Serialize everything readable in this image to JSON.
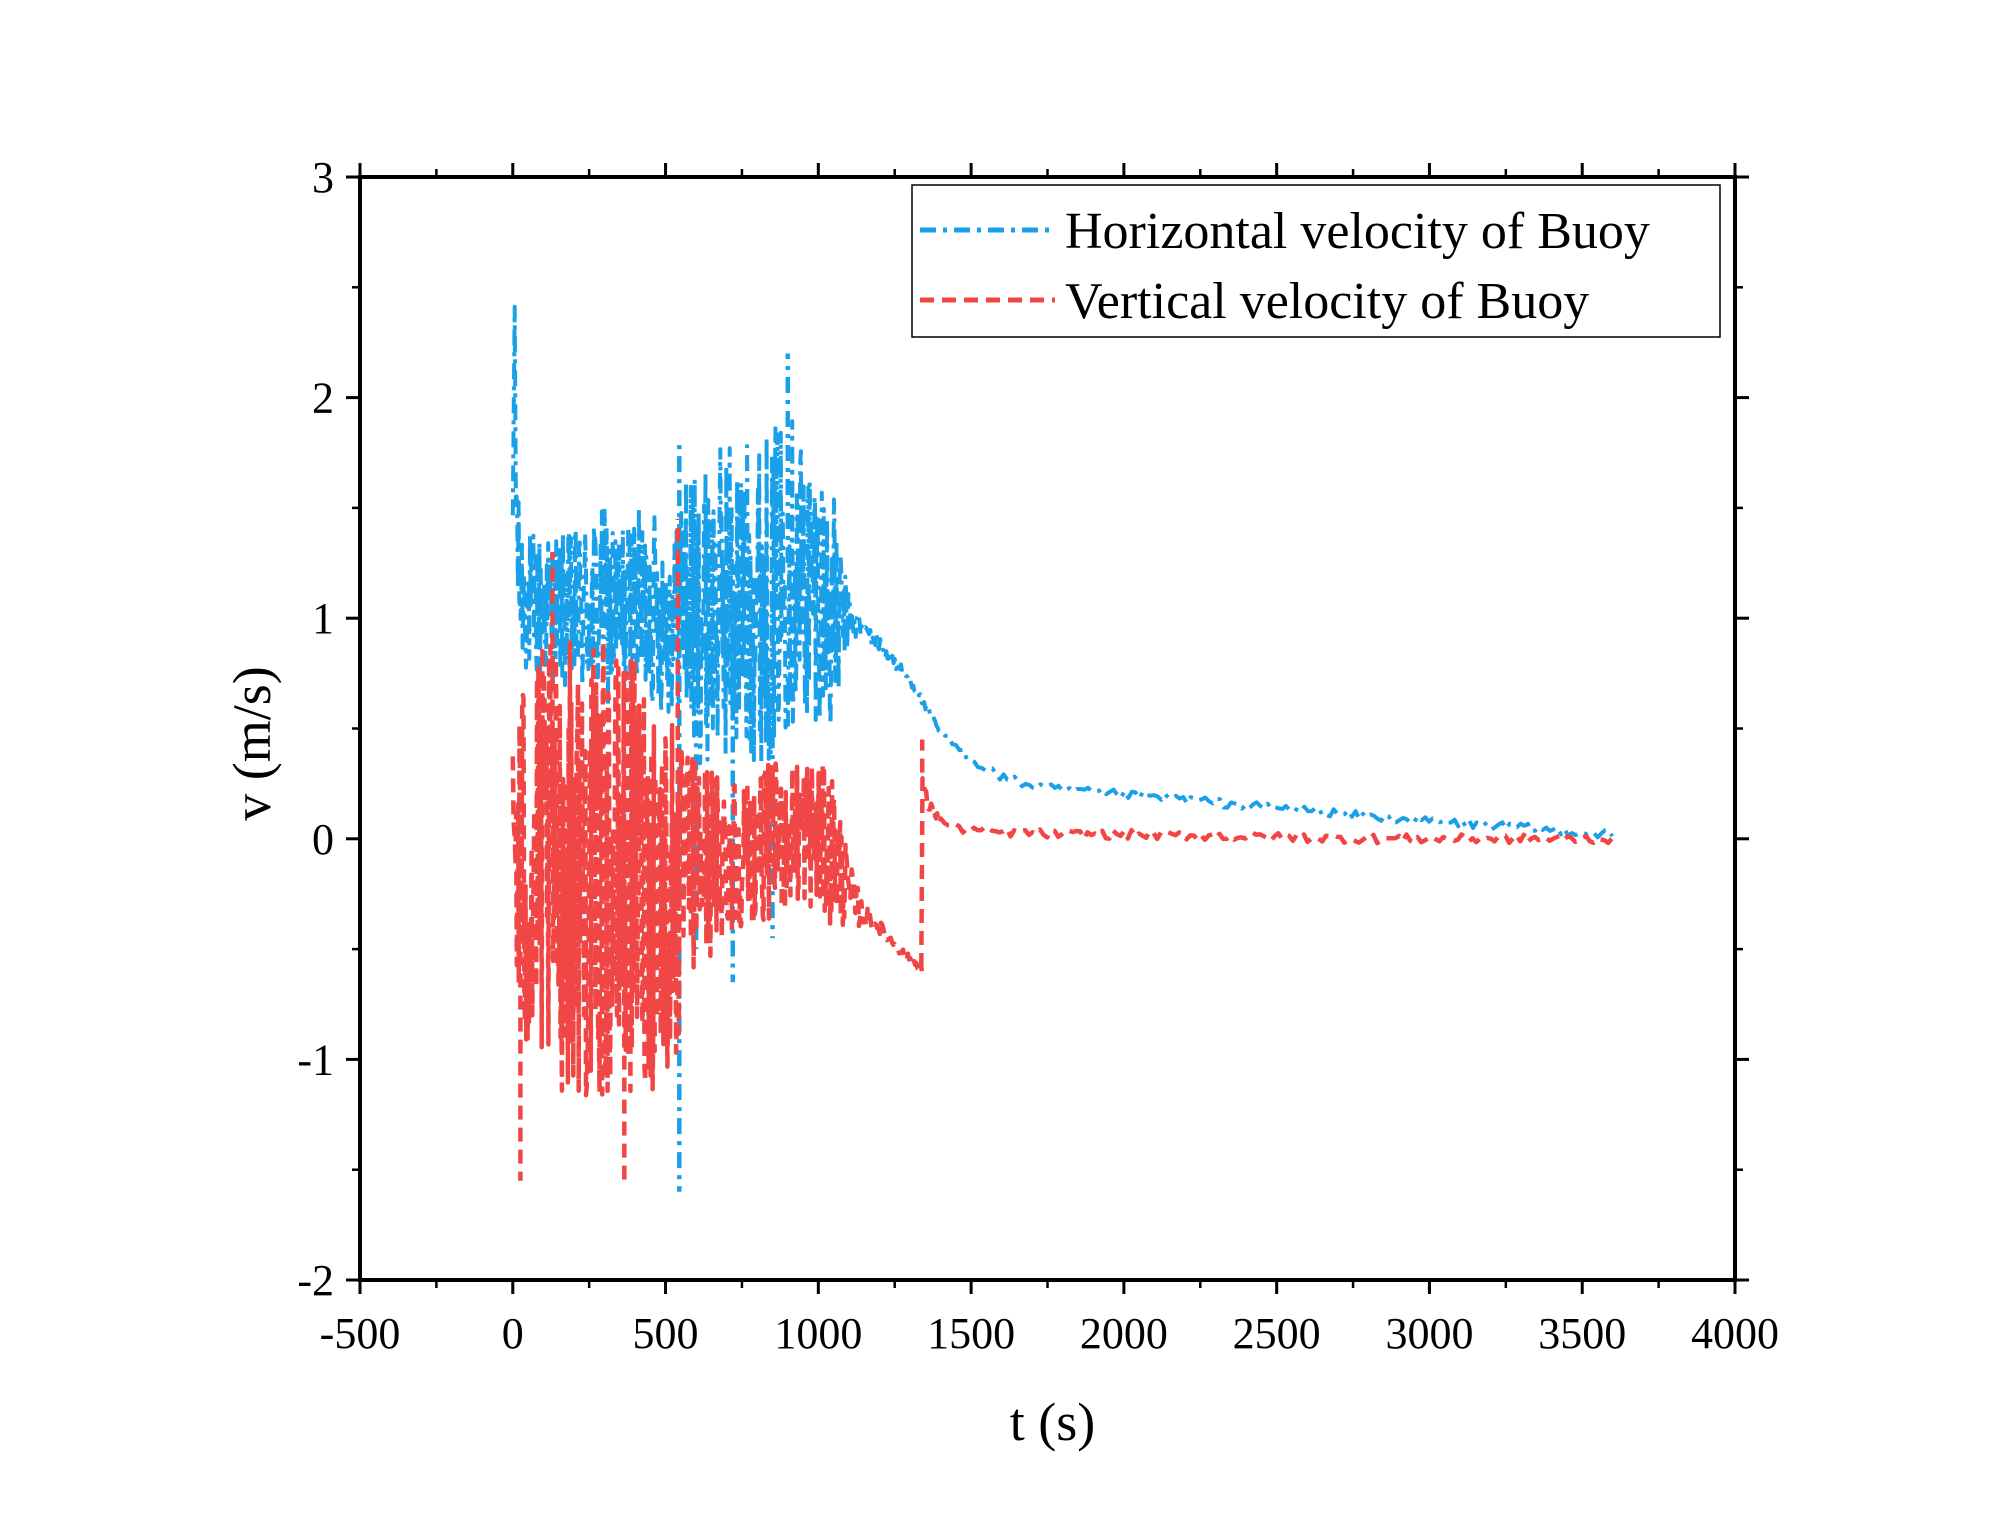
{
  "chart_data": {
    "type": "line",
    "title": "",
    "xlabel": "t (s)",
    "ylabel": "v (m/s)",
    "xlim": [
      -500,
      4000
    ],
    "ylim": [
      -2,
      3
    ],
    "xticks": [
      -500,
      0,
      500,
      1000,
      1500,
      2000,
      2500,
      3000,
      3500,
      4000
    ],
    "yticks": [
      -2,
      -1,
      0,
      1,
      2,
      3
    ],
    "xtick_labels": [
      "-500",
      "0",
      "500",
      "1000",
      "1500",
      "2000",
      "2500",
      "3000",
      "3500",
      "4000"
    ],
    "ytick_labels": [
      "-2",
      "-1",
      "0",
      "1",
      "2",
      "3"
    ],
    "grid": false,
    "legend_position": "top-right",
    "series": [
      {
        "name": "Horizontal velocity of Buoy",
        "color": "#1aa0e8",
        "dash": "dash-dot",
        "x": [
          0,
          5,
          10,
          20,
          40,
          60,
          100,
          150,
          200,
          250,
          300,
          350,
          400,
          450,
          500,
          540,
          545,
          550,
          560,
          600,
          650,
          700,
          750,
          800,
          850,
          900,
          950,
          1000,
          1050,
          1100,
          1150,
          1200,
          1250,
          1300,
          1350,
          1400,
          1500,
          1600,
          1700,
          1800,
          2000,
          2200,
          2400,
          2600,
          2800,
          3000,
          3200,
          3400,
          3600
        ],
        "center": [
          1.2,
          2.65,
          1.6,
          1.15,
          1.1,
          1.05,
          1.05,
          1.05,
          1.0,
          1.05,
          1.05,
          1.0,
          1.05,
          1.05,
          1.0,
          1.0,
          1.2,
          1.1,
          1.1,
          1.0,
          1.0,
          1.1,
          1.05,
          1.1,
          1.1,
          1.25,
          1.15,
          1.15,
          1.0,
          1.0,
          0.95,
          0.88,
          0.8,
          0.72,
          0.6,
          0.48,
          0.36,
          0.28,
          0.24,
          0.22,
          0.2,
          0.18,
          0.15,
          0.13,
          0.1,
          0.08,
          0.06,
          0.04,
          0.02
        ],
        "amplitude": [
          0.3,
          0.05,
          0.3,
          0.35,
          0.35,
          0.35,
          0.35,
          0.35,
          0.4,
          0.45,
          0.45,
          0.45,
          0.45,
          0.45,
          0.45,
          0.45,
          0.6,
          0.6,
          0.65,
          0.65,
          0.7,
          0.75,
          0.75,
          0.75,
          0.75,
          0.75,
          0.7,
          0.6,
          0.55,
          0.1,
          0.05,
          0.04,
          0.03,
          0.02,
          0.02,
          0.02,
          0.02,
          0.02,
          0.02,
          0.02,
          0.02,
          0.02,
          0.02,
          0.02,
          0.02,
          0.02,
          0.02,
          0.02,
          0.02
        ],
        "spikes": [
          [
            545,
            -1.6
          ],
          [
            545,
            1.8
          ],
          [
            900,
            2.2
          ],
          [
            720,
            -0.65
          ],
          [
            850,
            -0.45
          ],
          [
            600,
            -0.5
          ]
        ]
      },
      {
        "name": "Vertical velocity of Buoy",
        "color": "#f04646",
        "dash": "dashed",
        "x": [
          0,
          20,
          60,
          100,
          150,
          200,
          250,
          300,
          350,
          400,
          450,
          500,
          540,
          550,
          600,
          650,
          700,
          750,
          800,
          850,
          900,
          950,
          1000,
          1050,
          1100,
          1150,
          1200,
          1250,
          1300,
          1338,
          1340,
          1345,
          1360,
          1400,
          1450,
          1500,
          1600,
          1800,
          2000,
          2400,
          2800,
          3200,
          3600
        ],
        "center": [
          0.0,
          -0.1,
          -0.2,
          -0.1,
          -0.15,
          -0.1,
          -0.2,
          -0.15,
          -0.2,
          -0.15,
          -0.2,
          -0.25,
          -0.25,
          -0.15,
          -0.1,
          -0.1,
          -0.05,
          -0.05,
          -0.05,
          0.0,
          0.0,
          0.05,
          0.0,
          -0.05,
          -0.25,
          -0.35,
          -0.4,
          -0.48,
          -0.55,
          -0.58,
          0.3,
          0.22,
          0.15,
          0.08,
          0.05,
          0.04,
          0.03,
          0.02,
          0.02,
          0.01,
          0.0,
          0.0,
          0.0
        ],
        "amplitude": [
          0.5,
          0.9,
          0.95,
          1.0,
          1.0,
          1.05,
          1.05,
          1.05,
          1.05,
          1.0,
          0.95,
          0.9,
          0.85,
          0.55,
          0.5,
          0.45,
          0.4,
          0.35,
          0.35,
          0.35,
          0.35,
          0.35,
          0.35,
          0.35,
          0.15,
          0.05,
          0.03,
          0.02,
          0.02,
          0.02,
          0.05,
          0.04,
          0.03,
          0.02,
          0.02,
          0.02,
          0.02,
          0.02,
          0.02,
          0.02,
          0.02,
          0.02,
          0.02
        ],
        "spikes": [
          [
            25,
            -1.55
          ],
          [
            365,
            -1.58
          ],
          [
            540,
            1.45
          ],
          [
            130,
            1.3
          ],
          [
            1338,
            -0.6
          ],
          [
            1340,
            0.45
          ]
        ]
      }
    ]
  }
}
